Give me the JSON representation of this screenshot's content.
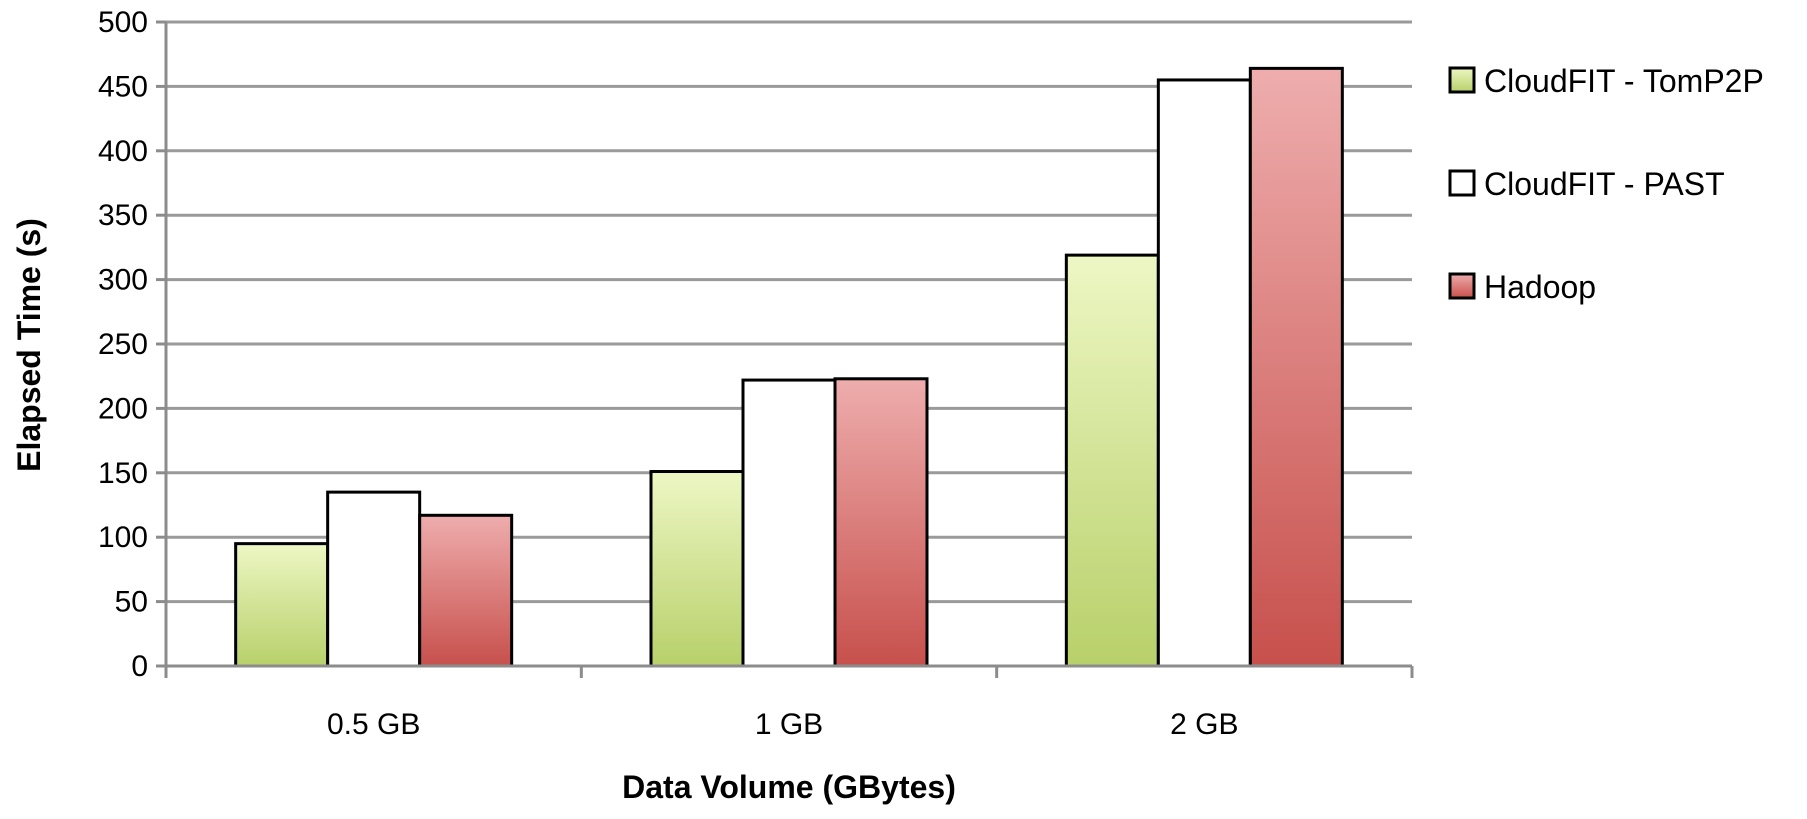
{
  "chart_data": {
    "type": "bar",
    "categories": [
      "0.5 GB",
      "1 GB",
      "2 GB"
    ],
    "series": [
      {
        "name": "CloudFIT - TomP2P",
        "values": [
          95,
          151,
          319
        ],
        "color": "#c6d97a"
      },
      {
        "name": "CloudFIT - PAST",
        "values": [
          135,
          222,
          455
        ],
        "color": "#ffffff"
      },
      {
        "name": "Hadoop",
        "values": [
          117,
          223,
          464
        ],
        "color": "#d4605c"
      }
    ],
    "title": "",
    "xlabel": "Data Volume (GBytes)",
    "ylabel": "Elapsed Time (s)",
    "ylim": [
      0,
      500
    ],
    "yticks": [
      0,
      50,
      100,
      150,
      200,
      250,
      300,
      350,
      400,
      450,
      500
    ],
    "grid": true,
    "legend_position": "right"
  }
}
